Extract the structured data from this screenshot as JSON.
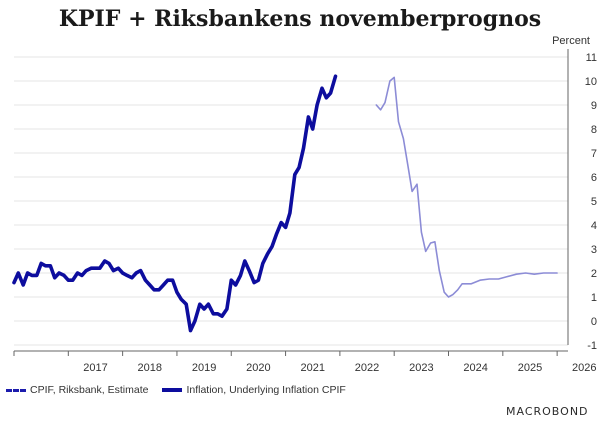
{
  "title": "KPIF + Riksbankens novemberprognos",
  "brand": "MACROBOND",
  "chart_data": {
    "type": "line",
    "unit_label": "Percent",
    "x_range": [
      2016.0,
      2026.2
    ],
    "ylim": [
      -1,
      11
    ],
    "y_ticks": [
      -1,
      0,
      1,
      2,
      3,
      4,
      5,
      6,
      7,
      8,
      9,
      10,
      11
    ],
    "x_ticks": [
      "2017",
      "2018",
      "2019",
      "2020",
      "2021",
      "2022",
      "2023",
      "2024",
      "2025",
      "2026"
    ],
    "legend_position": "bottom-left",
    "series": [
      {
        "name": "CPIF, Riksbank, Estimate",
        "color": "#8c8cd6",
        "points": [
          [
            2022.67,
            9.0
          ],
          [
            2022.75,
            8.8
          ],
          [
            2022.83,
            9.1
          ],
          [
            2022.92,
            10.0
          ],
          [
            2023.0,
            10.15
          ],
          [
            2023.08,
            8.3
          ],
          [
            2023.17,
            7.6
          ],
          [
            2023.25,
            6.5
          ],
          [
            2023.33,
            5.4
          ],
          [
            2023.42,
            5.7
          ],
          [
            2023.5,
            3.7
          ],
          [
            2023.58,
            2.9
          ],
          [
            2023.67,
            3.25
          ],
          [
            2023.75,
            3.3
          ],
          [
            2023.83,
            2.1
          ],
          [
            2023.92,
            1.2
          ],
          [
            2024.0,
            1.0
          ],
          [
            2024.08,
            1.1
          ],
          [
            2024.17,
            1.3
          ],
          [
            2024.25,
            1.55
          ],
          [
            2024.42,
            1.55
          ],
          [
            2024.58,
            1.7
          ],
          [
            2024.75,
            1.75
          ],
          [
            2024.92,
            1.75
          ],
          [
            2025.08,
            1.85
          ],
          [
            2025.25,
            1.95
          ],
          [
            2025.42,
            2.0
          ],
          [
            2025.58,
            1.95
          ],
          [
            2025.75,
            2.0
          ],
          [
            2025.92,
            2.0
          ],
          [
            2026.0,
            2.0
          ]
        ]
      },
      {
        "name": "Inflation, Underlying Inflation CPIF",
        "color": "#0d0d9e",
        "points": [
          [
            2016.0,
            1.6
          ],
          [
            2016.08,
            2.0
          ],
          [
            2016.17,
            1.5
          ],
          [
            2016.25,
            2.0
          ],
          [
            2016.33,
            1.9
          ],
          [
            2016.42,
            1.9
          ],
          [
            2016.5,
            2.4
          ],
          [
            2016.58,
            2.3
          ],
          [
            2016.67,
            2.3
          ],
          [
            2016.75,
            1.8
          ],
          [
            2016.83,
            2.0
          ],
          [
            2016.92,
            1.9
          ],
          [
            2017.0,
            1.7
          ],
          [
            2017.08,
            1.7
          ],
          [
            2017.17,
            2.0
          ],
          [
            2017.25,
            1.9
          ],
          [
            2017.33,
            2.1
          ],
          [
            2017.42,
            2.2
          ],
          [
            2017.5,
            2.2
          ],
          [
            2017.58,
            2.2
          ],
          [
            2017.67,
            2.5
          ],
          [
            2017.75,
            2.4
          ],
          [
            2017.83,
            2.1
          ],
          [
            2017.92,
            2.2
          ],
          [
            2018.0,
            2.0
          ],
          [
            2018.08,
            1.9
          ],
          [
            2018.17,
            1.8
          ],
          [
            2018.25,
            2.0
          ],
          [
            2018.33,
            2.1
          ],
          [
            2018.42,
            1.7
          ],
          [
            2018.5,
            1.5
          ],
          [
            2018.58,
            1.3
          ],
          [
            2018.67,
            1.3
          ],
          [
            2018.75,
            1.5
          ],
          [
            2018.83,
            1.7
          ],
          [
            2018.92,
            1.7
          ],
          [
            2019.0,
            1.2
          ],
          [
            2019.08,
            0.9
          ],
          [
            2019.17,
            0.7
          ],
          [
            2019.25,
            -0.4
          ],
          [
            2019.33,
            0.0
          ],
          [
            2019.42,
            0.7
          ],
          [
            2019.5,
            0.5
          ],
          [
            2019.58,
            0.7
          ],
          [
            2019.67,
            0.3
          ],
          [
            2019.75,
            0.3
          ],
          [
            2019.83,
            0.2
          ],
          [
            2019.92,
            0.5
          ],
          [
            2020.0,
            1.7
          ],
          [
            2020.08,
            1.5
          ],
          [
            2020.17,
            1.9
          ],
          [
            2020.25,
            2.5
          ],
          [
            2020.33,
            2.1
          ],
          [
            2020.42,
            1.6
          ],
          [
            2020.5,
            1.7
          ],
          [
            2020.58,
            2.4
          ],
          [
            2020.67,
            2.8
          ],
          [
            2020.75,
            3.1
          ],
          [
            2020.83,
            3.6
          ],
          [
            2020.92,
            4.1
          ],
          [
            2021.0,
            3.9
          ],
          [
            2021.08,
            4.5
          ],
          [
            2021.17,
            6.1
          ],
          [
            2021.25,
            6.4
          ],
          [
            2021.33,
            7.2
          ],
          [
            2021.42,
            8.5
          ],
          [
            2021.5,
            8.0
          ],
          [
            2021.58,
            9.0
          ],
          [
            2021.67,
            9.7
          ],
          [
            2021.75,
            9.3
          ],
          [
            2021.83,
            9.5
          ],
          [
            2021.92,
            10.2
          ]
        ]
      }
    ]
  }
}
